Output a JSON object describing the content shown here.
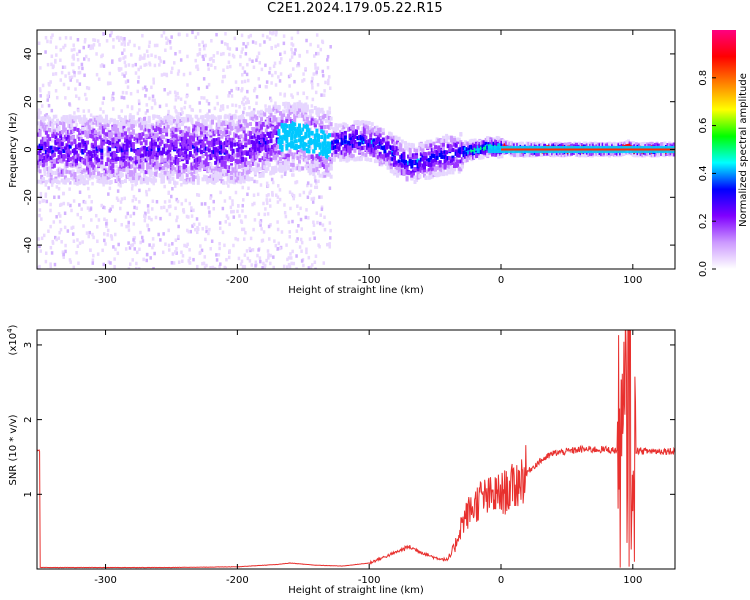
{
  "title": "C2E1.2024.179.05.22.R15",
  "chart_data": [
    {
      "type": "heatmap",
      "xlabel": "Height of straight line (km)",
      "ylabel": "Frequency (Hz)",
      "xlim": [
        -352,
        132
      ],
      "ylim": [
        -50,
        50
      ],
      "xticks": [
        -300,
        -200,
        -100,
        0,
        100
      ],
      "yticks": [
        -40,
        -20,
        0,
        20,
        40
      ],
      "colorbar": {
        "label": "Normalized spectral amplitude",
        "range": [
          0,
          1
        ],
        "ticks": [
          "0.0",
          "0.2",
          "0.4",
          "0.6",
          "0.8"
        ],
        "colors": [
          "#ffffff",
          "#cc99ff",
          "#8000ff",
          "#0000ff",
          "#00ffff",
          "#00ff00",
          "#ffff00",
          "#ff8000",
          "#ff0000",
          "#ff0080"
        ]
      },
      "ridge": {
        "x": [
          -350,
          -300,
          -250,
          -200,
          -175,
          -160,
          -150,
          -140,
          -130,
          -120,
          -110,
          -100,
          -90,
          -80,
          -70,
          -60,
          -50,
          -40,
          -30,
          -20,
          -10,
          0,
          10,
          20,
          40,
          60,
          80,
          90,
          95,
          100,
          132
        ],
        "y": [
          0,
          0,
          0,
          0,
          4,
          6,
          5,
          3,
          2,
          3,
          4,
          3,
          1,
          -3,
          -6,
          -5,
          -3,
          -2,
          -1,
          0,
          1,
          1,
          0,
          0,
          0,
          0,
          0,
          0,
          1,
          0,
          0
        ]
      }
    },
    {
      "type": "line",
      "xlabel": "Height of straight line (km)",
      "ylabel": "SNR (10 * v/v)",
      "scale_label": "(x10",
      "scale_exp": "4",
      "scale_close": ")",
      "xlim": [
        -352,
        132
      ],
      "ylim": [
        0,
        3.2
      ],
      "xticks": [
        -300,
        -200,
        -100,
        0,
        100
      ],
      "yticks": [
        1,
        2,
        3
      ],
      "series": [
        {
          "color": "#e8302e",
          "x": [
            -350,
            -250,
            -200,
            -170,
            -160,
            -140,
            -120,
            -100,
            -90,
            -80,
            -70,
            -60,
            -50,
            -40,
            -35,
            -30,
            -25,
            -20,
            -15,
            -10,
            -5,
            0,
            5,
            10,
            20,
            30,
            40,
            60,
            80,
            90,
            93,
            96,
            98,
            100,
            102,
            105,
            110,
            120,
            132
          ],
          "y": [
            0.02,
            0.02,
            0.03,
            0.06,
            0.08,
            0.05,
            0.04,
            0.08,
            0.15,
            0.22,
            0.3,
            0.22,
            0.15,
            0.12,
            0.3,
            0.6,
            0.75,
            0.85,
            0.95,
            0.95,
            0.98,
            1.0,
            1.05,
            1.1,
            1.3,
            1.45,
            1.55,
            1.6,
            1.6,
            1.58,
            1.6,
            2.2,
            3.2,
            0.5,
            1.6,
            1.58,
            1.58,
            1.58,
            1.58
          ]
        }
      ]
    }
  ]
}
